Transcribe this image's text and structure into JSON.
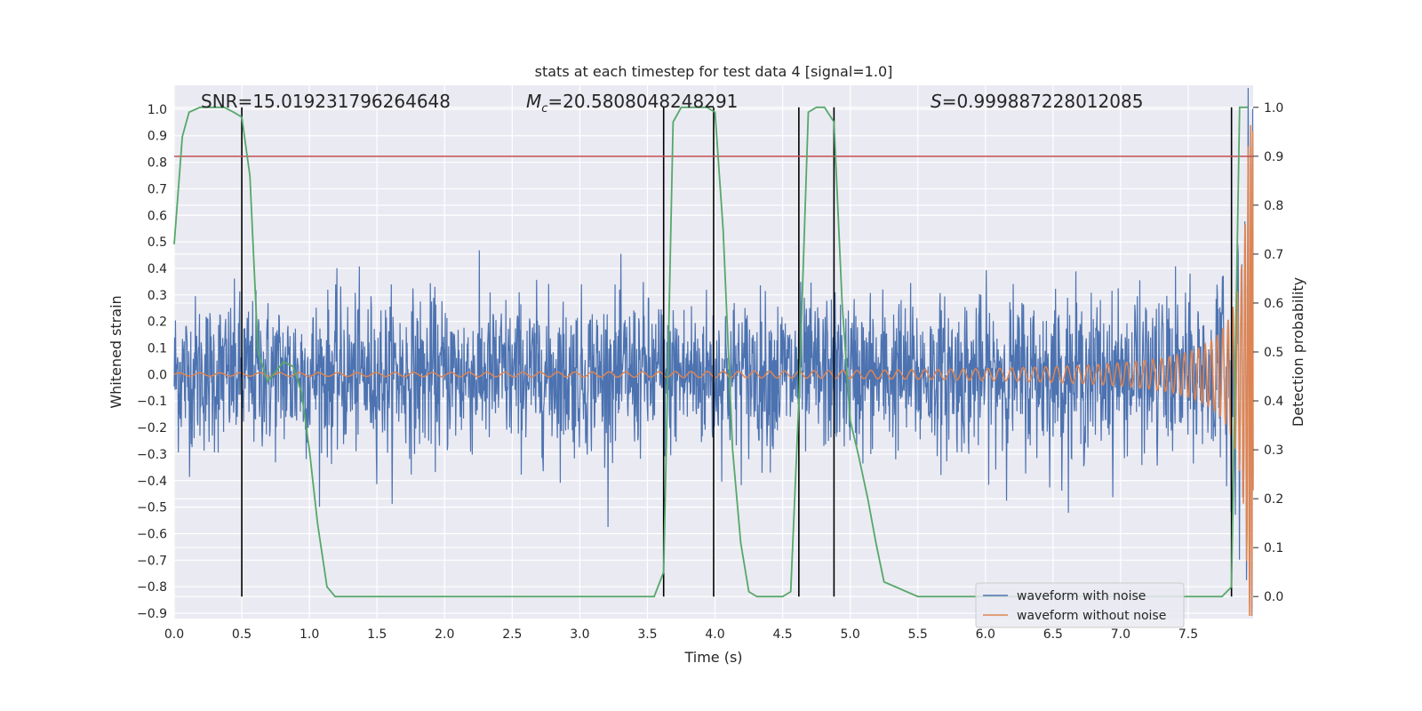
{
  "chart_data": {
    "type": "line",
    "title": "stats at each timestep for test data 4 [signal=1.0]",
    "xlabel": "Time (s)",
    "ylabel": "Whitened strain",
    "y2label": "Detection probability",
    "xlim": [
      0.0,
      7.98
    ],
    "ylim": [
      -0.92,
      1.09
    ],
    "y2lim": [
      -0.045,
      1.045
    ],
    "x_ticks": [
      0.0,
      0.5,
      1.0,
      1.5,
      2.0,
      2.5,
      3.0,
      3.5,
      4.0,
      4.5,
      5.0,
      5.5,
      6.0,
      6.5,
      7.0,
      7.5
    ],
    "x_tick_labels": [
      "0.0",
      "0.5",
      "1.0",
      "1.5",
      "2.0",
      "2.5",
      "3.0",
      "3.5",
      "4.0",
      "4.5",
      "5.0",
      "5.5",
      "6.0",
      "6.5",
      "7.0",
      "7.5"
    ],
    "y_ticks": [
      -0.9,
      -0.8,
      -0.7,
      -0.6,
      -0.5,
      -0.4,
      -0.3,
      -0.2,
      -0.1,
      0.0,
      0.1,
      0.2,
      0.3,
      0.4,
      0.5,
      0.6,
      0.7,
      0.8,
      0.9,
      1.0
    ],
    "y_tick_labels": [
      "−0.9",
      "−0.8",
      "−0.7",
      "−0.6",
      "−0.5",
      "−0.4",
      "−0.3",
      "−0.2",
      "−0.1",
      "0.0",
      "0.1",
      "0.2",
      "0.3",
      "0.4",
      "0.5",
      "0.6",
      "0.7",
      "0.8",
      "0.9",
      "1.0"
    ],
    "y2_ticks": [
      0.0,
      0.1,
      0.2,
      0.3,
      0.4,
      0.5,
      0.6,
      0.7,
      0.8,
      0.9,
      1.0
    ],
    "y2_tick_labels": [
      "0.0",
      "0.1",
      "0.2",
      "0.3",
      "0.4",
      "0.5",
      "0.6",
      "0.7",
      "0.8",
      "0.9",
      "1.0"
    ],
    "grid": true,
    "annotations": {
      "snr": "SNR=15.019231796264648",
      "mc_symbol": "M",
      "mc_sub": "c",
      "mc_value": "=20.5808048248291",
      "s_symbol": "S",
      "s_value": "=0.999887228012085"
    },
    "legend": {
      "placement": "bottom-right",
      "entries": [
        {
          "name": "waveform with noise",
          "color": "#4c72b0"
        },
        {
          "name": "waveform without noise",
          "color": "#dd8452"
        }
      ]
    },
    "threshold_y": 0.9,
    "threshold_color": "#c44e52",
    "vertical_markers_x": [
      0.5,
      3.62,
      3.99,
      4.62,
      4.88,
      7.82
    ],
    "marker_color": "#000000",
    "probability_series": {
      "name": "Detection probability",
      "color": "#55a868",
      "x": [
        0.0,
        0.06,
        0.11,
        0.19,
        0.25,
        0.31,
        0.37,
        0.44,
        0.5,
        0.56,
        0.62,
        0.69,
        0.75,
        0.81,
        0.88,
        0.94,
        1.0,
        1.06,
        1.13,
        1.19,
        1.25,
        1.5,
        2.0,
        2.5,
        3.0,
        3.55,
        3.62,
        3.69,
        3.75,
        3.81,
        3.88,
        3.94,
        4.0,
        4.06,
        4.13,
        4.19,
        4.25,
        4.31,
        4.38,
        4.5,
        4.56,
        4.62,
        4.69,
        4.75,
        4.81,
        4.88,
        4.94,
        5.0,
        5.06,
        5.13,
        5.19,
        5.25,
        5.5,
        6.0,
        6.5,
        7.0,
        7.5,
        7.75,
        7.82,
        7.88,
        7.94
      ],
      "values": [
        0.72,
        0.94,
        0.99,
        1.0,
        1.0,
        1.0,
        1.0,
        0.99,
        0.98,
        0.86,
        0.5,
        0.44,
        0.46,
        0.48,
        0.47,
        0.42,
        0.3,
        0.15,
        0.02,
        0.0,
        0.0,
        0.0,
        0.0,
        0.0,
        0.0,
        0.0,
        0.05,
        0.97,
        1.0,
        1.0,
        1.0,
        1.0,
        0.99,
        0.75,
        0.3,
        0.11,
        0.01,
        0.0,
        0.0,
        0.0,
        0.01,
        0.4,
        0.99,
        1.0,
        1.0,
        0.97,
        0.6,
        0.36,
        0.29,
        0.2,
        0.11,
        0.03,
        0.0,
        0.0,
        0.0,
        0.0,
        0.0,
        0.0,
        0.02,
        1.0,
        1.0
      ]
    },
    "series": [
      {
        "name": "waveform with noise",
        "color": "#4c72b0"
      },
      {
        "name": "waveform without noise",
        "color": "#dd8452"
      }
    ]
  }
}
